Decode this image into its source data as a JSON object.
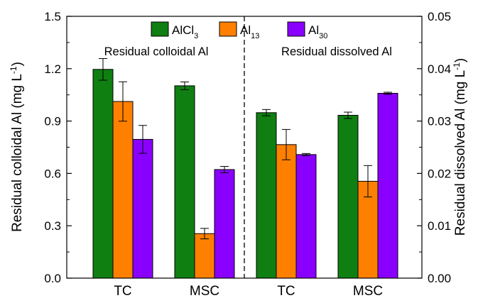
{
  "chart_data": {
    "type": "bar",
    "groups": [
      {
        "category": "TC",
        "axis": "left"
      },
      {
        "category": "MSC",
        "axis": "left"
      },
      {
        "category": "TC",
        "axis": "right"
      },
      {
        "category": "MSC",
        "axis": "right"
      }
    ],
    "series": [
      {
        "name": "AlCl",
        "sub": "3",
        "color": "#0F7F12",
        "values": [
          1.196,
          1.102,
          0.0316,
          0.0311
        ],
        "errors": [
          0.062,
          0.022,
          0.0006,
          0.0006
        ]
      },
      {
        "name": "Al",
        "sub": "13",
        "color": "#FF8000",
        "values": [
          1.012,
          0.255,
          0.0255,
          0.0185
        ],
        "errors": [
          0.113,
          0.03,
          0.0029,
          0.003
        ]
      },
      {
        "name": "Al",
        "sub": "30",
        "color": "#8A00FF",
        "values": [
          0.795,
          0.622,
          0.0236,
          0.0353
        ],
        "errors": [
          0.08,
          0.018,
          0.0002,
          0.0002
        ]
      }
    ],
    "annotations": [
      "Residual colloidal Al",
      "Residual dissolved Al"
    ],
    "y_left": {
      "label_main": "Residual colloidal Al (mg L",
      "label_exp": "-1",
      "label_end": ")",
      "min": 0.0,
      "max": 1.5,
      "ticks": [
        "0.0",
        "0.3",
        "0.6",
        "0.9",
        "1.2",
        "1.5"
      ],
      "tick_values": [
        0.0,
        0.3,
        0.6,
        0.9,
        1.2,
        1.5
      ]
    },
    "y_right": {
      "label_main": "Residual dissolved Al (mg L",
      "label_exp": "-1",
      "label_end": ")",
      "min": 0.0,
      "max": 0.05,
      "ticks": [
        "0.00",
        "0.01",
        "0.02",
        "0.03",
        "0.04",
        "0.05"
      ],
      "tick_values": [
        0.0,
        0.01,
        0.02,
        0.03,
        0.04,
        0.05
      ]
    },
    "divider": "dashed vertical line between MSC and TC",
    "legend_position": "top-center",
    "grid": false
  }
}
